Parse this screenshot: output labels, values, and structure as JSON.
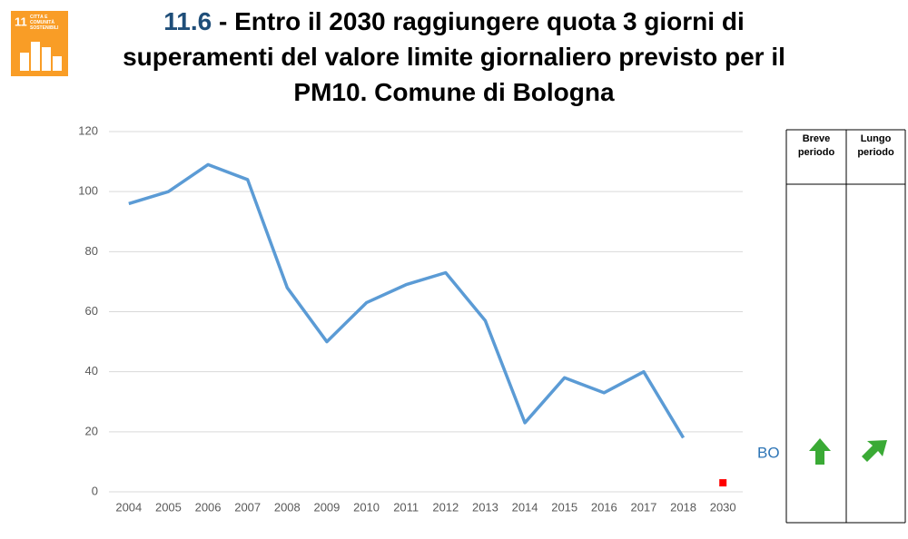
{
  "chart_data": {
    "type": "line",
    "title_number": "11.6",
    "title": "- Entro il 2030 raggiungere quota 3 giorni di superamenti del valore limite giornaliero previsto per il PM10. Comune di Bologna",
    "icon_number": "11",
    "icon_text": "CITTÀ E COMUNITÀ SOSTENIBILI",
    "categories": [
      "2004",
      "2005",
      "2006",
      "2007",
      "2008",
      "2009",
      "2010",
      "2011",
      "2012",
      "2013",
      "2014",
      "2015",
      "2016",
      "2017",
      "2018",
      "2030"
    ],
    "series": [
      {
        "color": "#5b9bd5",
        "marker": "none",
        "values": [
          96,
          100,
          109,
          104,
          68,
          50,
          63,
          69,
          73,
          57,
          23,
          38,
          33,
          40,
          18,
          null
        ]
      },
      {
        "color": "#ff0000",
        "marker": "square",
        "values": [
          null,
          null,
          null,
          null,
          null,
          null,
          null,
          null,
          null,
          null,
          null,
          null,
          null,
          null,
          null,
          3
        ]
      }
    ],
    "ylim": [
      0,
      120
    ],
    "yticks": [
      0,
      20,
      40,
      60,
      80,
      100,
      120
    ],
    "grid": true,
    "table": {
      "headers": [
        "Breve periodo",
        "Lungo periodo"
      ],
      "row_label": "BO"
    }
  }
}
